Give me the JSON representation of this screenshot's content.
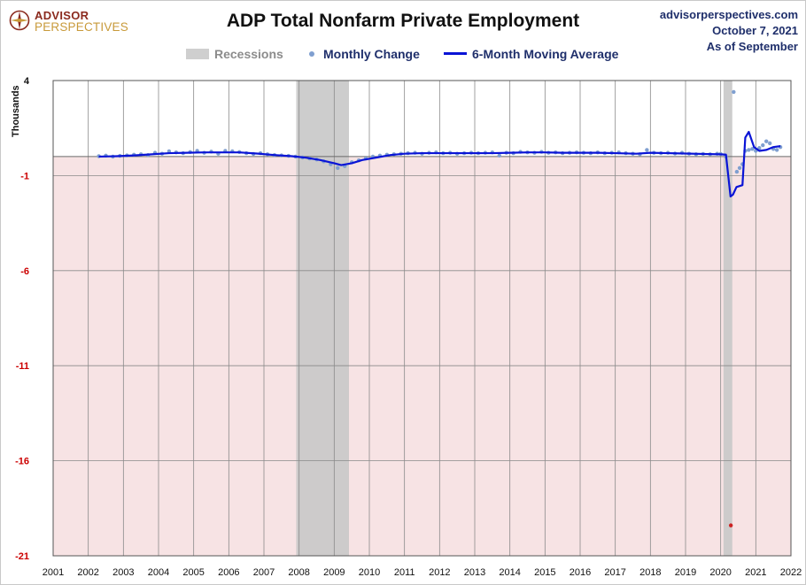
{
  "logo": {
    "line1": "ADVISOR",
    "line2": "PERSPECTIVES"
  },
  "source": {
    "site": "advisorperspectives.com",
    "date": "October 7, 2021",
    "as_of": "As of September"
  },
  "colors": {
    "positive_tick": "#111111",
    "negative_tick": "#cc0000",
    "negative_zone": "#f7e3e4",
    "recession": "#c8c8c8",
    "dots": "#7f9fd0",
    "moving_average": "#0a14d6",
    "outlier_dot": "#cc2222"
  },
  "chart_data": {
    "type": "scatter",
    "title": "ADP Total Nonfarm Private Employment",
    "ylabel": "Thousands",
    "ylim": [
      -21,
      4
    ],
    "yticks": [
      4,
      -1,
      -6,
      -11,
      -16,
      -21
    ],
    "xlim": [
      2001,
      2022
    ],
    "xticks": [
      2001,
      2002,
      2003,
      2004,
      2005,
      2006,
      2007,
      2008,
      2009,
      2010,
      2011,
      2012,
      2013,
      2014,
      2015,
      2016,
      2017,
      2018,
      2019,
      2020,
      2021,
      2022
    ],
    "grid": true,
    "legend_position": "top",
    "legend": [
      "Recessions",
      "Monthly Change",
      "6-Month Moving Average"
    ],
    "recessions": [
      [
        2007.92,
        2009.42
      ],
      [
        2020.08,
        2020.33
      ]
    ],
    "series": [
      {
        "name": "Monthly Change",
        "kind": "dots",
        "points": [
          [
            2002.3,
            0.02
          ],
          [
            2002.5,
            0.05
          ],
          [
            2002.7,
            0.0
          ],
          [
            2002.9,
            0.04
          ],
          [
            2003.1,
            0.06
          ],
          [
            2003.3,
            0.1
          ],
          [
            2003.5,
            0.12
          ],
          [
            2003.7,
            0.08
          ],
          [
            2003.9,
            0.2
          ],
          [
            2004.1,
            0.15
          ],
          [
            2004.3,
            0.28
          ],
          [
            2004.5,
            0.22
          ],
          [
            2004.7,
            0.18
          ],
          [
            2004.9,
            0.24
          ],
          [
            2005.1,
            0.3
          ],
          [
            2005.3,
            0.2
          ],
          [
            2005.5,
            0.26
          ],
          [
            2005.7,
            0.15
          ],
          [
            2005.9,
            0.3
          ],
          [
            2006.1,
            0.28
          ],
          [
            2006.3,
            0.24
          ],
          [
            2006.5,
            0.18
          ],
          [
            2006.7,
            0.14
          ],
          [
            2006.9,
            0.18
          ],
          [
            2007.1,
            0.12
          ],
          [
            2007.3,
            0.08
          ],
          [
            2007.5,
            0.06
          ],
          [
            2007.7,
            0.04
          ],
          [
            2007.9,
            0.0
          ],
          [
            2008.1,
            -0.05
          ],
          [
            2008.3,
            -0.1
          ],
          [
            2008.5,
            -0.15
          ],
          [
            2008.7,
            -0.25
          ],
          [
            2008.9,
            -0.4
          ],
          [
            2009.1,
            -0.6
          ],
          [
            2009.3,
            -0.5
          ],
          [
            2009.5,
            -0.3
          ],
          [
            2009.7,
            -0.2
          ],
          [
            2009.9,
            -0.1
          ],
          [
            2010.1,
            0.0
          ],
          [
            2010.3,
            0.05
          ],
          [
            2010.5,
            0.1
          ],
          [
            2010.7,
            0.12
          ],
          [
            2010.9,
            0.15
          ],
          [
            2011.1,
            0.18
          ],
          [
            2011.3,
            0.2
          ],
          [
            2011.5,
            0.15
          ],
          [
            2011.7,
            0.2
          ],
          [
            2011.9,
            0.22
          ],
          [
            2012.1,
            0.18
          ],
          [
            2012.3,
            0.2
          ],
          [
            2012.5,
            0.15
          ],
          [
            2012.7,
            0.18
          ],
          [
            2012.9,
            0.2
          ],
          [
            2013.1,
            0.18
          ],
          [
            2013.3,
            0.2
          ],
          [
            2013.5,
            0.22
          ],
          [
            2013.7,
            0.05
          ],
          [
            2013.9,
            0.2
          ],
          [
            2014.1,
            0.18
          ],
          [
            2014.3,
            0.25
          ],
          [
            2014.5,
            0.22
          ],
          [
            2014.7,
            0.2
          ],
          [
            2014.9,
            0.25
          ],
          [
            2015.1,
            0.2
          ],
          [
            2015.3,
            0.22
          ],
          [
            2015.5,
            0.18
          ],
          [
            2015.7,
            0.2
          ],
          [
            2015.9,
            0.22
          ],
          [
            2016.1,
            0.2
          ],
          [
            2016.3,
            0.18
          ],
          [
            2016.5,
            0.22
          ],
          [
            2016.7,
            0.18
          ],
          [
            2016.9,
            0.2
          ],
          [
            2017.1,
            0.22
          ],
          [
            2017.3,
            0.18
          ],
          [
            2017.5,
            0.15
          ],
          [
            2017.7,
            0.12
          ],
          [
            2017.9,
            0.35
          ],
          [
            2018.1,
            0.2
          ],
          [
            2018.3,
            0.18
          ],
          [
            2018.5,
            0.2
          ],
          [
            2018.7,
            0.16
          ],
          [
            2018.9,
            0.2
          ],
          [
            2019.1,
            0.15
          ],
          [
            2019.3,
            0.12
          ],
          [
            2019.5,
            0.14
          ],
          [
            2019.7,
            0.12
          ],
          [
            2019.9,
            0.15
          ],
          [
            2020.0,
            0.14
          ],
          [
            2020.15,
            0.0
          ],
          [
            2020.29,
            -19.4
          ],
          [
            2020.37,
            3.4
          ],
          [
            2020.46,
            -0.8
          ],
          [
            2020.54,
            -0.6
          ],
          [
            2020.62,
            -0.4
          ],
          [
            2020.7,
            0.3
          ],
          [
            2020.8,
            0.35
          ],
          [
            2020.9,
            0.4
          ],
          [
            2021.0,
            0.3
          ],
          [
            2021.1,
            0.45
          ],
          [
            2021.2,
            0.6
          ],
          [
            2021.3,
            0.8
          ],
          [
            2021.4,
            0.7
          ],
          [
            2021.5,
            0.4
          ],
          [
            2021.6,
            0.35
          ],
          [
            2021.7,
            0.5
          ]
        ]
      },
      {
        "name": "6-Month Moving Average",
        "kind": "line",
        "points": [
          [
            2002.3,
            0.0
          ],
          [
            2002.8,
            0.02
          ],
          [
            2003.3,
            0.06
          ],
          [
            2003.8,
            0.12
          ],
          [
            2004.3,
            0.18
          ],
          [
            2004.8,
            0.2
          ],
          [
            2005.3,
            0.22
          ],
          [
            2005.8,
            0.22
          ],
          [
            2006.3,
            0.22
          ],
          [
            2006.8,
            0.16
          ],
          [
            2007.3,
            0.08
          ],
          [
            2007.8,
            0.02
          ],
          [
            2008.2,
            -0.06
          ],
          [
            2008.6,
            -0.18
          ],
          [
            2009.0,
            -0.35
          ],
          [
            2009.2,
            -0.45
          ],
          [
            2009.5,
            -0.35
          ],
          [
            2009.8,
            -0.18
          ],
          [
            2010.2,
            -0.05
          ],
          [
            2010.6,
            0.08
          ],
          [
            2011.0,
            0.15
          ],
          [
            2011.5,
            0.18
          ],
          [
            2012.0,
            0.18
          ],
          [
            2012.5,
            0.18
          ],
          [
            2013.0,
            0.18
          ],
          [
            2013.5,
            0.18
          ],
          [
            2014.0,
            0.2
          ],
          [
            2014.5,
            0.22
          ],
          [
            2015.0,
            0.22
          ],
          [
            2015.5,
            0.2
          ],
          [
            2016.0,
            0.2
          ],
          [
            2016.5,
            0.2
          ],
          [
            2017.0,
            0.18
          ],
          [
            2017.6,
            0.15
          ],
          [
            2018.0,
            0.2
          ],
          [
            2018.5,
            0.18
          ],
          [
            2019.0,
            0.16
          ],
          [
            2019.5,
            0.14
          ],
          [
            2020.0,
            0.12
          ],
          [
            2020.15,
            0.1
          ],
          [
            2020.28,
            -2.1
          ],
          [
            2020.35,
            -2.0
          ],
          [
            2020.45,
            -1.6
          ],
          [
            2020.62,
            -1.5
          ],
          [
            2020.7,
            1.0
          ],
          [
            2020.8,
            1.3
          ],
          [
            2020.95,
            0.5
          ],
          [
            2021.1,
            0.3
          ],
          [
            2021.3,
            0.35
          ],
          [
            2021.5,
            0.5
          ],
          [
            2021.7,
            0.55
          ]
        ]
      }
    ]
  }
}
